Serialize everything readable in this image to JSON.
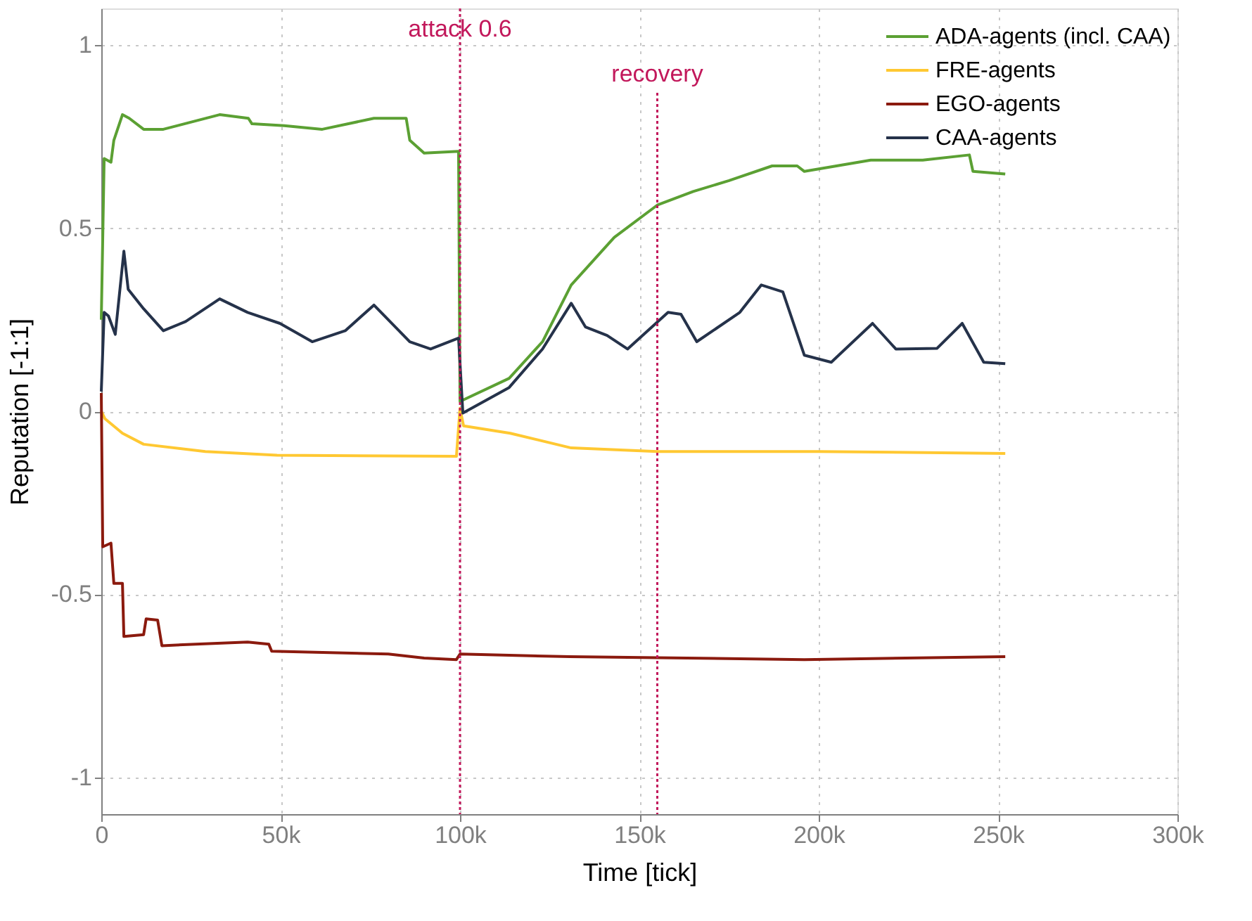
{
  "chart_data": {
    "type": "line",
    "xlabel": "Time [tick]",
    "ylabel": "Reputation [-1:1]",
    "xlim": [
      0,
      300000
    ],
    "xticks": [
      0,
      {
        "value": 50000,
        "label": "50k"
      },
      {
        "value": 100000,
        "label": "100k"
      },
      {
        "value": 150000,
        "label": "150k"
      },
      {
        "value": 200000,
        "label": "200k"
      },
      {
        "value": 250000,
        "label": "250k"
      },
      {
        "value": 300000,
        "label": "300k"
      }
    ],
    "ylim": [
      -1.1,
      1.1
    ],
    "yticks": [
      -1,
      -0.5,
      0,
      0.5,
      1
    ],
    "grid": true,
    "legend": "top right",
    "line_style": "solid",
    "marker": "none",
    "ref_lines": [
      {
        "axis": "x",
        "value": 100000,
        "label": "attack 0.6",
        "color": "#c2185b",
        "line_style": "dotted"
      },
      {
        "axis": "x",
        "value": 155000,
        "label": "recovery",
        "color": "#c2185b",
        "line_style": "dotted"
      }
    ],
    "series": [
      {
        "name": "ADA-agents (incl. CAA)",
        "color": "#5ba033",
        "x": [
          0,
          800,
          2700,
          3500,
          5900,
          7800,
          11800,
          17300,
          33000,
          41000,
          42000,
          51000,
          61600,
          76000,
          85000,
          86000,
          90000,
          99600,
          100000,
          113700,
          123000,
          131000,
          143000,
          155000,
          165000,
          175000,
          187000,
          194000,
          196000,
          214500,
          229000,
          242000,
          243000,
          252000
        ],
        "values": [
          0.25,
          0.69,
          0.68,
          0.74,
          0.81,
          0.8,
          0.77,
          0.77,
          0.81,
          0.8,
          0.785,
          0.78,
          0.77,
          0.8,
          0.8,
          0.74,
          0.705,
          0.71,
          0.027,
          0.09,
          0.19,
          0.345,
          0.475,
          0.563,
          0.6,
          0.63,
          0.67,
          0.67,
          0.655,
          0.686,
          0.686,
          0.7,
          0.655,
          0.648
        ]
      },
      {
        "name": "FRE-agents",
        "color": "#ffc832",
        "x": [
          0,
          1000,
          5900,
          11800,
          29000,
          49000,
          99000,
          100000,
          101000,
          114000,
          131000,
          155000,
          200000,
          252000
        ],
        "values": [
          0,
          -0.02,
          -0.06,
          -0.09,
          -0.11,
          -0.12,
          -0.123,
          0.008,
          -0.04,
          -0.06,
          -0.1,
          -0.11,
          -0.11,
          -0.115
        ]
      },
      {
        "name": "EGO-agents",
        "color": "#8b1a0e",
        "x": [
          0,
          400,
          2700,
          3500,
          5900,
          6300,
          11800,
          12500,
          15700,
          16900,
          40800,
          46700,
          47500,
          80000,
          90000,
          99000,
          100000,
          130600,
          196000,
          252000
        ],
        "values": [
          0.05,
          -0.37,
          -0.36,
          -0.47,
          -0.47,
          -0.615,
          -0.61,
          -0.567,
          -0.57,
          -0.64,
          -0.63,
          -0.636,
          -0.655,
          -0.663,
          -0.674,
          -0.678,
          -0.663,
          -0.67,
          -0.678,
          -0.67
        ]
      },
      {
        "name": "CAA-agents",
        "color": "#25324a",
        "x": [
          0,
          800,
          2000,
          3900,
          6300,
          7500,
          11800,
          17300,
          23500,
          33000,
          40800,
          49800,
          58800,
          68000,
          76000,
          86000,
          91800,
          99600,
          100800,
          113700,
          123000,
          131000,
          135000,
          141000,
          146700,
          158000,
          161600,
          166000,
          178000,
          184000,
          190000,
          196000,
          203500,
          215000,
          221500,
          233000,
          240000,
          246000,
          252000
        ],
        "values": [
          0.054,
          0.27,
          0.26,
          0.21,
          0.437,
          0.333,
          0.28,
          0.22,
          0.245,
          0.307,
          0.27,
          0.24,
          0.19,
          0.22,
          0.29,
          0.19,
          0.17,
          0.2,
          -0.005,
          0.065,
          0.17,
          0.295,
          0.23,
          0.207,
          0.17,
          0.27,
          0.265,
          0.19,
          0.27,
          0.345,
          0.326,
          0.153,
          0.134,
          0.24,
          0.17,
          0.172,
          0.24,
          0.134,
          0.13
        ]
      }
    ]
  }
}
